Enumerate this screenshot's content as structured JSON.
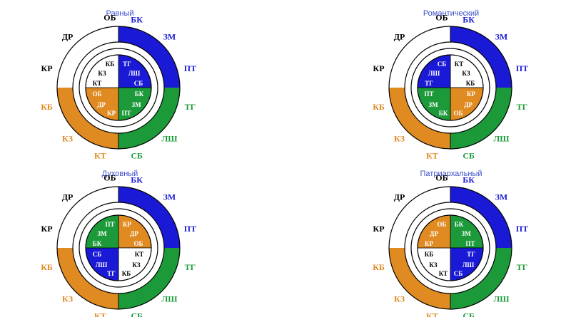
{
  "colors": {
    "blue": "#1a1ad6",
    "green": "#1c9a3a",
    "orange": "#e08a22",
    "white": "#ffffff",
    "black": "#000000",
    "title": "#3b4fc9"
  },
  "outer_ring": {
    "segments": [
      "blue",
      "green",
      "orange",
      "white"
    ],
    "labels": [
      {
        "text": "ОБ",
        "color": "black"
      },
      {
        "text": "БК",
        "color": "blue"
      },
      {
        "text": "ЗМ",
        "color": "blue"
      },
      {
        "text": "ПТ",
        "color": "blue"
      },
      {
        "text": "ТГ",
        "color": "green"
      },
      {
        "text": "ЛШ",
        "color": "green"
      },
      {
        "text": "СБ",
        "color": "green"
      },
      {
        "text": "КТ",
        "color": "orange"
      },
      {
        "text": "КЗ",
        "color": "orange"
      },
      {
        "text": "КБ",
        "color": "orange"
      },
      {
        "text": "КР",
        "color": "black"
      },
      {
        "text": "ДР",
        "color": "black"
      }
    ]
  },
  "diagrams": [
    {
      "title": "Равный",
      "quadrants": [
        "blue",
        "green",
        "orange",
        "white"
      ],
      "inner_labels": [
        {
          "text": "ТГ",
          "color": "white"
        },
        {
          "text": "ЛШ",
          "color": "white"
        },
        {
          "text": "СБ",
          "color": "white"
        },
        {
          "text": "БК",
          "color": "white"
        },
        {
          "text": "ЗМ",
          "color": "white"
        },
        {
          "text": "ПТ",
          "color": "white"
        },
        {
          "text": "КР",
          "color": "white"
        },
        {
          "text": "ДР",
          "color": "white"
        },
        {
          "text": "ОБ",
          "color": "white"
        },
        {
          "text": "КТ",
          "color": "black"
        },
        {
          "text": "КЗ",
          "color": "black"
        },
        {
          "text": "КБ",
          "color": "black"
        }
      ]
    },
    {
      "title": "Романтический",
      "quadrants": [
        "white",
        "orange",
        "green",
        "blue"
      ],
      "inner_labels": [
        {
          "text": "КТ",
          "color": "black"
        },
        {
          "text": "КЗ",
          "color": "black"
        },
        {
          "text": "КБ",
          "color": "black"
        },
        {
          "text": "КР",
          "color": "white"
        },
        {
          "text": "ДР",
          "color": "white"
        },
        {
          "text": "ОБ",
          "color": "white"
        },
        {
          "text": "БК",
          "color": "white"
        },
        {
          "text": "ЗМ",
          "color": "white"
        },
        {
          "text": "ПТ",
          "color": "white"
        },
        {
          "text": "ТГ",
          "color": "white"
        },
        {
          "text": "ЛШ",
          "color": "white"
        },
        {
          "text": "СБ",
          "color": "white"
        }
      ]
    },
    {
      "title": "Духовный",
      "quadrants": [
        "orange",
        "white",
        "blue",
        "green"
      ],
      "inner_labels": [
        {
          "text": "КР",
          "color": "white"
        },
        {
          "text": "ДР",
          "color": "white"
        },
        {
          "text": "ОБ",
          "color": "white"
        },
        {
          "text": "КТ",
          "color": "black"
        },
        {
          "text": "КЗ",
          "color": "black"
        },
        {
          "text": "КБ",
          "color": "black"
        },
        {
          "text": "ТГ",
          "color": "white"
        },
        {
          "text": "ЛШ",
          "color": "white"
        },
        {
          "text": "СБ",
          "color": "white"
        },
        {
          "text": "БК",
          "color": "white"
        },
        {
          "text": "ЗМ",
          "color": "white"
        },
        {
          "text": "ПТ",
          "color": "white"
        }
      ]
    },
    {
      "title": "Патриархальный",
      "quadrants": [
        "green",
        "blue",
        "white",
        "orange"
      ],
      "inner_labels": [
        {
          "text": "БК",
          "color": "white"
        },
        {
          "text": "ЗМ",
          "color": "white"
        },
        {
          "text": "ПТ",
          "color": "white"
        },
        {
          "text": "ТГ",
          "color": "white"
        },
        {
          "text": "ЛШ",
          "color": "white"
        },
        {
          "text": "СБ",
          "color": "white"
        },
        {
          "text": "КТ",
          "color": "black"
        },
        {
          "text": "КЗ",
          "color": "black"
        },
        {
          "text": "КБ",
          "color": "black"
        },
        {
          "text": "КР",
          "color": "white"
        },
        {
          "text": "ДР",
          "color": "white"
        },
        {
          "text": "ОБ",
          "color": "white"
        }
      ]
    }
  ]
}
